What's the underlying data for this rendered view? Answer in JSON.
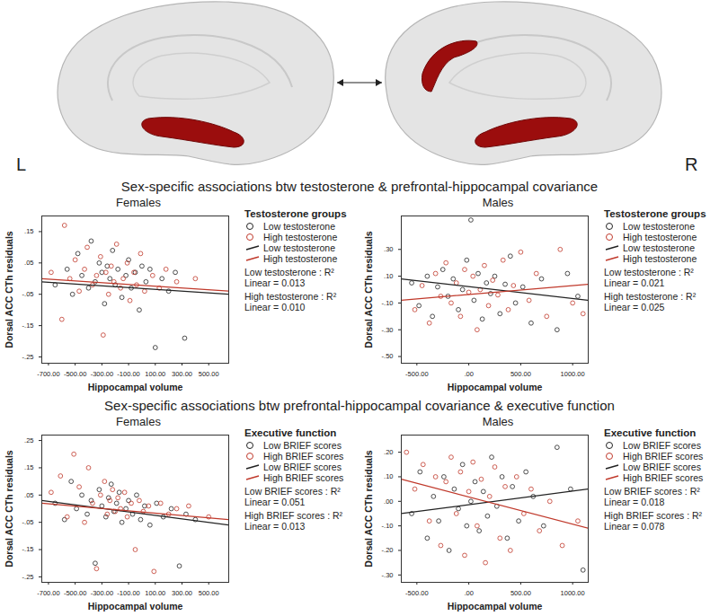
{
  "hemisphere_labels": [
    "L",
    "R"
  ],
  "sections": [
    "Sex-specific associations btw testosterone & prefrontal-hippocampal covariance",
    "Sex-specific associations btw prefrontal-hippocampal covariance & executive function"
  ],
  "chart_data": [
    {
      "type": "scatter",
      "title": "Females",
      "x_label": "Hippocampal volume",
      "y_label": "Dorsal ACC CTh residuals",
      "legend_title": "Testosterone groups",
      "annotations": [
        "Low testosterone : R² Linear = 0.013",
        "High testosterone : R² Linear = 0.010"
      ],
      "xlim": [
        -750,
        650
      ],
      "xticks": [
        {
          "value": -700,
          "label": "-700.00"
        },
        {
          "value": -500,
          "label": "-500.00"
        },
        {
          "value": -300,
          "label": "-300.00"
        },
        {
          "value": -100,
          "label": "-100.00"
        },
        {
          "value": 100,
          "label": "100.00"
        },
        {
          "value": 300,
          "label": "300.00"
        },
        {
          "value": 500,
          "label": "500.00"
        }
      ],
      "ylim": [
        -0.27,
        0.2
      ],
      "yticks": [
        {
          "value": 0.15,
          "label": ".15"
        },
        {
          "value": 0.05,
          "label": ".05"
        },
        {
          "value": -0.05,
          "label": "-.05"
        },
        {
          "value": -0.15,
          "label": "-.15"
        },
        {
          "value": -0.25,
          "label": "-.25"
        }
      ],
      "series": [
        {
          "name": "Low testosterone",
          "type": "scatter",
          "marker": "circle",
          "color": "#222222",
          "x": [
            -650,
            -560,
            -520,
            -480,
            -450,
            -400,
            -380,
            -350,
            -320,
            -300,
            -280,
            -260,
            -240,
            -220,
            -200,
            -180,
            -150,
            -120,
            -100,
            -80,
            -50,
            -20,
            0,
            30,
            60,
            100,
            150,
            200,
            250,
            320
          ],
          "values": [
            -0.02,
            0.03,
            -0.05,
            0.08,
            0.01,
            -0.03,
            0.12,
            -0.01,
            0.05,
            0.02,
            -0.08,
            0.04,
            0.0,
            0.09,
            -0.02,
            0.03,
            -0.06,
            0.01,
            0.06,
            -0.03,
            0.02,
            -0.1,
            0.04,
            -0.01,
            0.03,
            -0.22,
            0.0,
            -0.04,
            0.02,
            -0.19
          ]
        },
        {
          "name": "High testosterone",
          "type": "scatter",
          "marker": "circle",
          "color": "#c0392b",
          "x": [
            -680,
            -600,
            -580,
            -540,
            -500,
            -470,
            -430,
            -410,
            -370,
            -340,
            -310,
            -290,
            -270,
            -250,
            -230,
            -210,
            -190,
            -160,
            -140,
            -110,
            -90,
            -60,
            -40,
            -10,
            20,
            80,
            130,
            180,
            260,
            400
          ],
          "values": [
            0.02,
            -0.13,
            0.17,
            0.0,
            0.06,
            -0.04,
            0.03,
            0.1,
            -0.02,
            0.01,
            0.07,
            -0.18,
            0.02,
            -0.05,
            0.04,
            -0.01,
            0.11,
            -0.03,
            0.0,
            0.05,
            -0.07,
            0.02,
            -0.02,
            0.08,
            -0.04,
            0.01,
            -0.03,
            0.03,
            -0.01,
            0.0
          ]
        },
        {
          "name": "Low testosterone",
          "type": "line",
          "line_style": "solid",
          "color": "#222222",
          "x": [
            -750,
            650
          ],
          "values": [
            -0.01,
            -0.05
          ]
        },
        {
          "name": "High testosterone",
          "type": "line",
          "line_style": "solid",
          "color": "#c0392b",
          "x": [
            -750,
            650
          ],
          "values": [
            0.0,
            -0.04
          ]
        }
      ]
    },
    {
      "type": "scatter",
      "title": "Males",
      "x_label": "Hippocampal volume",
      "y_label": "Dorsal ACC CTh residuals",
      "legend_title": "Testosterone groups",
      "annotations": [
        "Low testosterone : R² Linear = 0.021",
        "High testosterone : R² Linear = 0.025"
      ],
      "xlim": [
        -650,
        1150
      ],
      "xticks": [
        {
          "value": -500,
          "label": "-500.00"
        },
        {
          "value": 0,
          "label": ".00"
        },
        {
          "value": 500,
          "label": "500.00"
        },
        {
          "value": 1000,
          "label": "1000.00"
        }
      ],
      "ylim": [
        -0.55,
        0.55
      ],
      "yticks": [
        {
          "value": 0.3,
          "label": ".30"
        },
        {
          "value": 0.1,
          "label": ".10"
        },
        {
          "value": -0.1,
          "label": "-.10"
        },
        {
          "value": -0.3,
          "label": "-.30"
        },
        {
          "value": -0.5,
          "label": "-.50"
        }
      ],
      "series": [
        {
          "name": "Low testosterone",
          "type": "scatter",
          "marker": "circle",
          "color": "#222222",
          "x": [
            -550,
            -480,
            -400,
            -350,
            -300,
            -250,
            -200,
            -150,
            -100,
            -60,
            -20,
            20,
            50,
            90,
            130,
            170,
            210,
            250,
            300,
            350,
            400,
            450,
            520,
            600,
            700,
            850,
            950,
            1050
          ],
          "values": [
            0.05,
            -0.12,
            0.1,
            -0.2,
            0.02,
            0.15,
            -0.05,
            0.08,
            -0.15,
            0.0,
            0.22,
            0.52,
            -0.08,
            0.12,
            -0.22,
            0.05,
            -0.03,
            0.1,
            -0.18,
            0.04,
            0.25,
            -0.1,
            0.02,
            -0.25,
            0.08,
            -0.3,
            0.12,
            -0.05
          ]
        },
        {
          "name": "High testosterone",
          "type": "scatter",
          "marker": "circle",
          "color": "#c0392b",
          "x": [
            -520,
            -450,
            -380,
            -320,
            -270,
            -220,
            -170,
            -120,
            -80,
            -40,
            0,
            40,
            80,
            110,
            150,
            190,
            230,
            280,
            330,
            380,
            430,
            500,
            580,
            650,
            750,
            880,
            1000,
            1100
          ],
          "values": [
            -0.15,
            0.03,
            -0.25,
            0.12,
            -0.05,
            0.2,
            -0.1,
            0.05,
            -0.2,
            0.15,
            -0.02,
            0.1,
            -0.3,
            0.0,
            0.18,
            -0.12,
            0.07,
            -0.04,
            0.22,
            -0.15,
            0.03,
            0.28,
            -0.08,
            0.12,
            -0.2,
            0.3,
            -0.1,
            -0.18
          ]
        },
        {
          "name": "Low testosterone",
          "type": "line",
          "line_style": "solid",
          "color": "#222222",
          "x": [
            -650,
            1150
          ],
          "values": [
            0.08,
            -0.08
          ]
        },
        {
          "name": "High testosterone",
          "type": "line",
          "line_style": "solid",
          "color": "#c0392b",
          "x": [
            -650,
            1150
          ],
          "values": [
            -0.08,
            0.04
          ]
        }
      ]
    },
    {
      "type": "scatter",
      "title": "Females",
      "x_label": "Hippocampal volume",
      "y_label": "Dorsal ACC CTh residuals",
      "legend_title": "Executive function",
      "annotations": [
        "Low BRIEF scores : R² Linear = 0.051",
        "High BRIEF scores : R² Linear = 0.013"
      ],
      "xlim": [
        -750,
        650
      ],
      "xticks": [
        {
          "value": -700,
          "label": "-700.00"
        },
        {
          "value": -500,
          "label": "-500.00"
        },
        {
          "value": -300,
          "label": "-300.00"
        },
        {
          "value": -100,
          "label": "-100.00"
        },
        {
          "value": 100,
          "label": "100.00"
        },
        {
          "value": 300,
          "label": "300.00"
        },
        {
          "value": 500,
          "label": "500.00"
        }
      ],
      "ylim": [
        -0.27,
        0.27
      ],
      "yticks": [
        {
          "value": 0.25,
          "label": ".25"
        },
        {
          "value": 0.15,
          "label": ".15"
        },
        {
          "value": 0.05,
          "label": ".05"
        },
        {
          "value": -0.05,
          "label": "-.05"
        },
        {
          "value": -0.15,
          "label": "-.15"
        },
        {
          "value": -0.25,
          "label": "-.25"
        }
      ],
      "series": [
        {
          "name": "Low BRIEF scores",
          "type": "scatter",
          "marker": "circle",
          "color": "#222222",
          "x": [
            -650,
            -580,
            -530,
            -490,
            -450,
            -410,
            -380,
            -350,
            -320,
            -300,
            -270,
            -250,
            -230,
            -210,
            -190,
            -170,
            -150,
            -120,
            -100,
            -70,
            -40,
            -10,
            20,
            60,
            110,
            160,
            220,
            280,
            330,
            400
          ],
          "values": [
            0.02,
            -0.04,
            0.1,
            0.0,
            0.05,
            -0.02,
            0.03,
            -0.2,
            0.07,
            0.01,
            -0.03,
            0.04,
            0.09,
            -0.01,
            0.02,
            0.06,
            -0.05,
            0.0,
            0.03,
            -0.02,
            0.05,
            -0.04,
            0.01,
            -0.06,
            0.02,
            -0.03,
            0.0,
            -0.21,
            -0.02,
            -0.04
          ]
        },
        {
          "name": "High BRIEF scores",
          "type": "scatter",
          "marker": "circle",
          "color": "#c0392b",
          "x": [
            -680,
            -610,
            -560,
            -510,
            -470,
            -430,
            -400,
            -370,
            -340,
            -310,
            -280,
            -260,
            -240,
            -220,
            -200,
            -180,
            -160,
            -130,
            -110,
            -80,
            -50,
            -20,
            10,
            50,
            90,
            140,
            200,
            260,
            350,
            500
          ],
          "values": [
            0.06,
            0.12,
            -0.03,
            0.2,
            0.08,
            -0.05,
            0.15,
            0.02,
            -0.22,
            0.05,
            0.1,
            -0.02,
            0.03,
            0.07,
            -0.01,
            0.04,
            0.0,
            0.06,
            -0.03,
            0.02,
            -0.15,
            0.03,
            -0.01,
            0.01,
            -0.23,
            0.02,
            -0.02,
            0.0,
            0.01,
            -0.03
          ]
        },
        {
          "name": "Low BRIEF scores",
          "type": "line",
          "line_style": "solid",
          "color": "#222222",
          "x": [
            -750,
            650
          ],
          "values": [
            0.03,
            -0.06
          ]
        },
        {
          "name": "High BRIEF scores",
          "type": "line",
          "line_style": "solid",
          "color": "#c0392b",
          "x": [
            -750,
            650
          ],
          "values": [
            0.02,
            -0.04
          ]
        }
      ]
    },
    {
      "type": "scatter",
      "title": "Males",
      "x_label": "Hippocampal volume",
      "y_label": "Dorsal ACC CTh residuals",
      "legend_title": "Executive function",
      "annotations": [
        "Low BRIEF scores : R² Linear = 0.018",
        "High BRIEF scores : R² Linear = 0.078"
      ],
      "xlim": [
        -650,
        1150
      ],
      "xticks": [
        {
          "value": -500,
          "label": "-500.00"
        },
        {
          "value": 0,
          "label": ".00"
        },
        {
          "value": 500,
          "label": "500.00"
        },
        {
          "value": 1000,
          "label": "1000.00"
        }
      ],
      "ylim": [
        -0.33,
        0.27
      ],
      "yticks": [
        {
          "value": 0.2,
          "label": ".20"
        },
        {
          "value": 0.1,
          "label": ".10"
        },
        {
          "value": 0,
          "label": ".00"
        },
        {
          "value": -0.1,
          "label": "-.10"
        },
        {
          "value": -0.2,
          "label": "-.20"
        },
        {
          "value": -0.3,
          "label": "-.30"
        }
      ],
      "series": [
        {
          "name": "Low BRIEF scores",
          "type": "scatter",
          "marker": "circle",
          "color": "#222222",
          "x": [
            -550,
            -470,
            -400,
            -340,
            -290,
            -240,
            -190,
            -140,
            -100,
            -60,
            -20,
            20,
            60,
            100,
            140,
            180,
            220,
            270,
            320,
            370,
            420,
            480,
            550,
            620,
            720,
            850,
            980,
            1100
          ],
          "values": [
            -0.05,
            0.12,
            -0.15,
            0.02,
            -0.08,
            0.1,
            -0.2,
            0.05,
            -0.03,
            0.15,
            -0.1,
            0.0,
            0.08,
            -0.12,
            0.04,
            -0.06,
            0.18,
            -0.02,
            0.1,
            -0.15,
            0.06,
            -0.08,
            0.12,
            0.02,
            -0.1,
            0.22,
            0.05,
            -0.28
          ]
        },
        {
          "name": "High BRIEF scores",
          "type": "scatter",
          "marker": "circle",
          "color": "#c0392b",
          "x": [
            -600,
            -520,
            -440,
            -380,
            -320,
            -270,
            -220,
            -170,
            -120,
            -80,
            -40,
            0,
            40,
            80,
            120,
            160,
            200,
            250,
            300,
            350,
            400,
            460,
            530,
            600,
            680,
            780,
            900,
            1050
          ],
          "values": [
            0.2,
            0.05,
            0.15,
            -0.08,
            0.1,
            -0.18,
            0.08,
            0.18,
            -0.05,
            0.12,
            -0.22,
            0.04,
            0.16,
            -0.1,
            0.09,
            -0.25,
            0.02,
            0.14,
            -0.15,
            0.06,
            -0.2,
            0.1,
            -0.05,
            0.05,
            -0.12,
            0.0,
            -0.18,
            -0.08
          ]
        },
        {
          "name": "Low BRIEF scores",
          "type": "line",
          "line_style": "solid",
          "color": "#222222",
          "x": [
            -650,
            1150
          ],
          "values": [
            -0.05,
            0.05
          ]
        },
        {
          "name": "High BRIEF scores",
          "type": "line",
          "line_style": "solid",
          "color": "#c0392b",
          "x": [
            -650,
            1150
          ],
          "values": [
            0.09,
            -0.11
          ]
        }
      ]
    }
  ]
}
